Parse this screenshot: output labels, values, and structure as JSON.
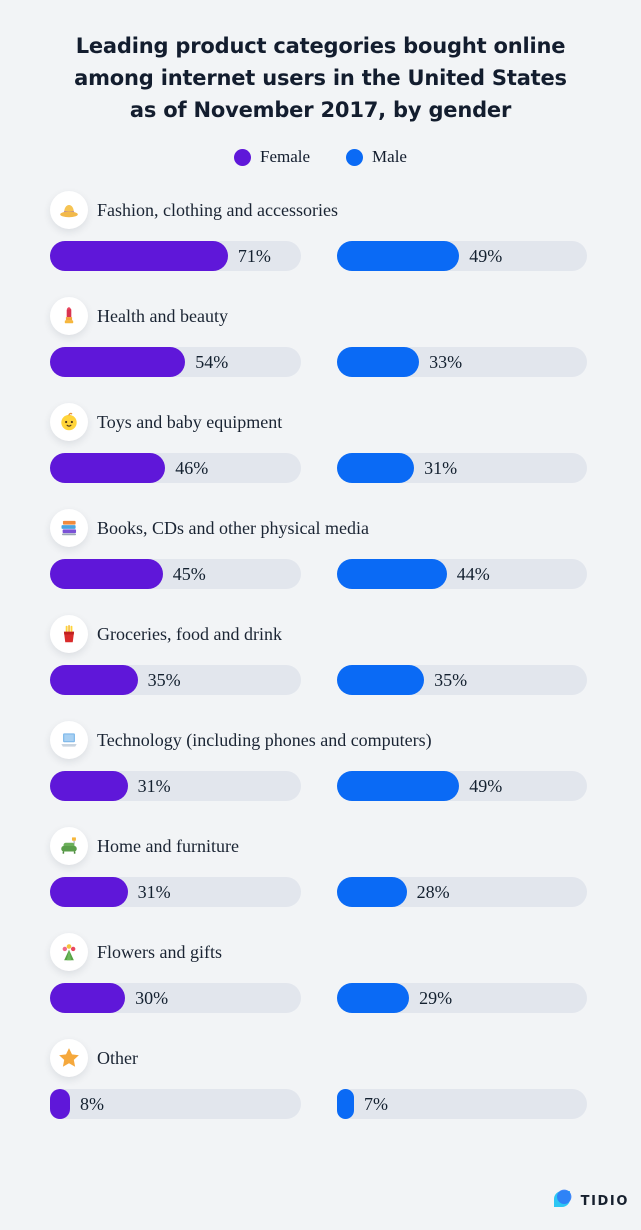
{
  "title": {
    "lines": [
      "Leading product categories bought online",
      "among internet users in the United States",
      "as of November 2017, by gender"
    ]
  },
  "legend": [
    {
      "label": "Female",
      "color": "#5f17d9"
    },
    {
      "label": "Male",
      "color": "#0a6af5"
    }
  ],
  "colors": {
    "background": "#f2f4f6",
    "track": "#e2e6ed",
    "female_bar": "#5f17d9",
    "male_bar": "#0a6af5",
    "text_dark": "#131d2e"
  },
  "chart_data": {
    "type": "bar",
    "title": "Leading product categories bought online among internet users in the United States as of November 2017, by gender",
    "categories": [
      "Fashion, clothing and accessories",
      "Health and beauty",
      "Toys and baby equipment",
      "Books, CDs and other physical media",
      "Groceries, food and drink",
      "Technology (including phones and computers)",
      "Home and furniture",
      "Flowers and gifts",
      "Other"
    ],
    "series": [
      {
        "name": "Female",
        "values": [
          71,
          54,
          46,
          45,
          35,
          31,
          31,
          30,
          8
        ]
      },
      {
        "name": "Male",
        "values": [
          49,
          33,
          31,
          44,
          35,
          49,
          28,
          29,
          7
        ]
      }
    ],
    "value_unit": "%",
    "xlim": [
      0,
      100
    ],
    "legend_position": "top",
    "orientation": "horizontal"
  },
  "rows": [
    {
      "label": "Fashion, clothing and accessories",
      "icon": "hat-icon",
      "female": {
        "value": 71,
        "label": "71%"
      },
      "male": {
        "value": 49,
        "label": "49%"
      }
    },
    {
      "label": "Health and beauty",
      "icon": "lipstick-icon",
      "female": {
        "value": 54,
        "label": "54%"
      },
      "male": {
        "value": 33,
        "label": "33%"
      }
    },
    {
      "label": "Toys and baby equipment",
      "icon": "baby-icon",
      "female": {
        "value": 46,
        "label": "46%"
      },
      "male": {
        "value": 31,
        "label": "31%"
      }
    },
    {
      "label": "Books, CDs and other physical media",
      "icon": "books-icon",
      "female": {
        "value": 45,
        "label": "45%"
      },
      "male": {
        "value": 44,
        "label": "44%"
      }
    },
    {
      "label": "Groceries, food and drink",
      "icon": "fries-icon",
      "female": {
        "value": 35,
        "label": "35%"
      },
      "male": {
        "value": 35,
        "label": "35%"
      }
    },
    {
      "label": "Technology (including phones and computers)",
      "icon": "laptop-icon",
      "female": {
        "value": 31,
        "label": "31%"
      },
      "male": {
        "value": 49,
        "label": "49%"
      }
    },
    {
      "label": "Home and furniture",
      "icon": "couch-icon",
      "female": {
        "value": 31,
        "label": "31%"
      },
      "male": {
        "value": 28,
        "label": "28%"
      }
    },
    {
      "label": "Flowers and gifts",
      "icon": "bouquet-icon",
      "female": {
        "value": 30,
        "label": "30%"
      },
      "male": {
        "value": 29,
        "label": "29%"
      }
    },
    {
      "label": "Other",
      "icon": "star-icon",
      "female": {
        "value": 8,
        "label": "8%"
      },
      "male": {
        "value": 7,
        "label": "7%"
      }
    }
  ],
  "footer": {
    "brand": "TIDIO"
  }
}
